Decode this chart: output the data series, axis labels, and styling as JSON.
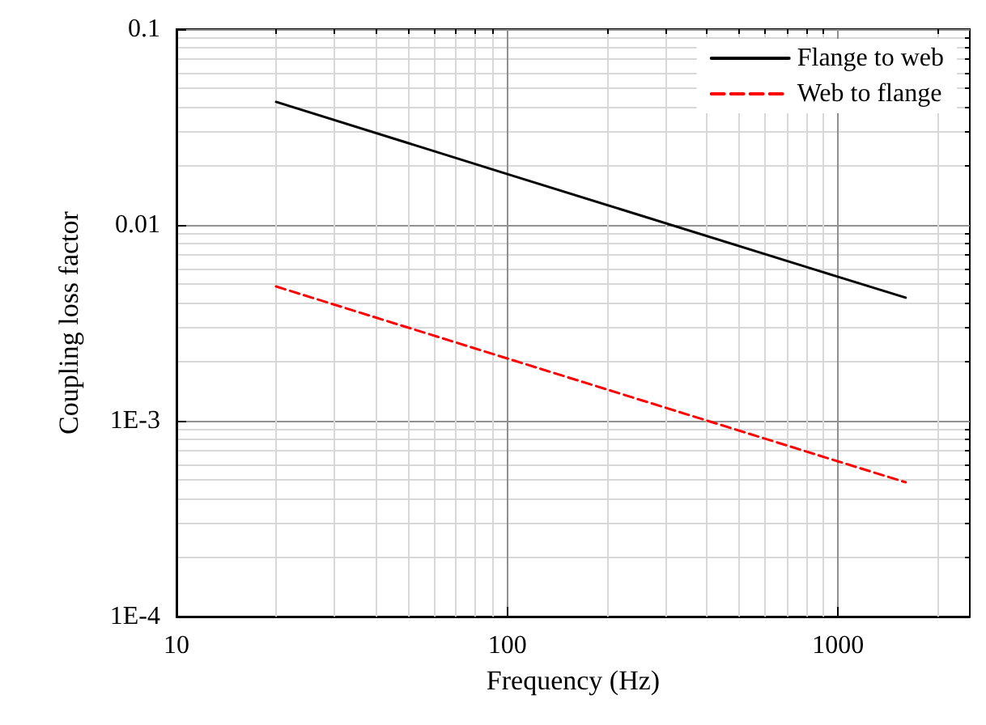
{
  "chart_data": {
    "type": "line",
    "xlabel": "Frequency (Hz)",
    "ylabel": "Coupling loss factor",
    "log": "xy",
    "xlim": [
      10,
      2500
    ],
    "ylim": [
      0.0001,
      0.1
    ],
    "xticks": [
      10,
      100,
      1000
    ],
    "yticks": [
      {
        "value": 0.0001,
        "label": "1E-4"
      },
      {
        "value": 0.001,
        "label": "1E-3"
      },
      0.01,
      0.1
    ],
    "grid": true,
    "legend": "top right",
    "marker": "none",
    "series": [
      {
        "name": "Flange to web",
        "color": "#000000",
        "line_style": "solid",
        "x": [
          20,
          100,
          1000,
          1600
        ],
        "values": [
          0.0425,
          0.0182,
          0.00543,
          0.00425
        ]
      },
      {
        "name": "Web to flange",
        "color": "#ff0000",
        "line_style": "dashed",
        "x": [
          20,
          100,
          1000,
          1600
        ],
        "values": [
          0.00485,
          0.00208,
          0.00062,
          0.000485
        ]
      }
    ]
  }
}
